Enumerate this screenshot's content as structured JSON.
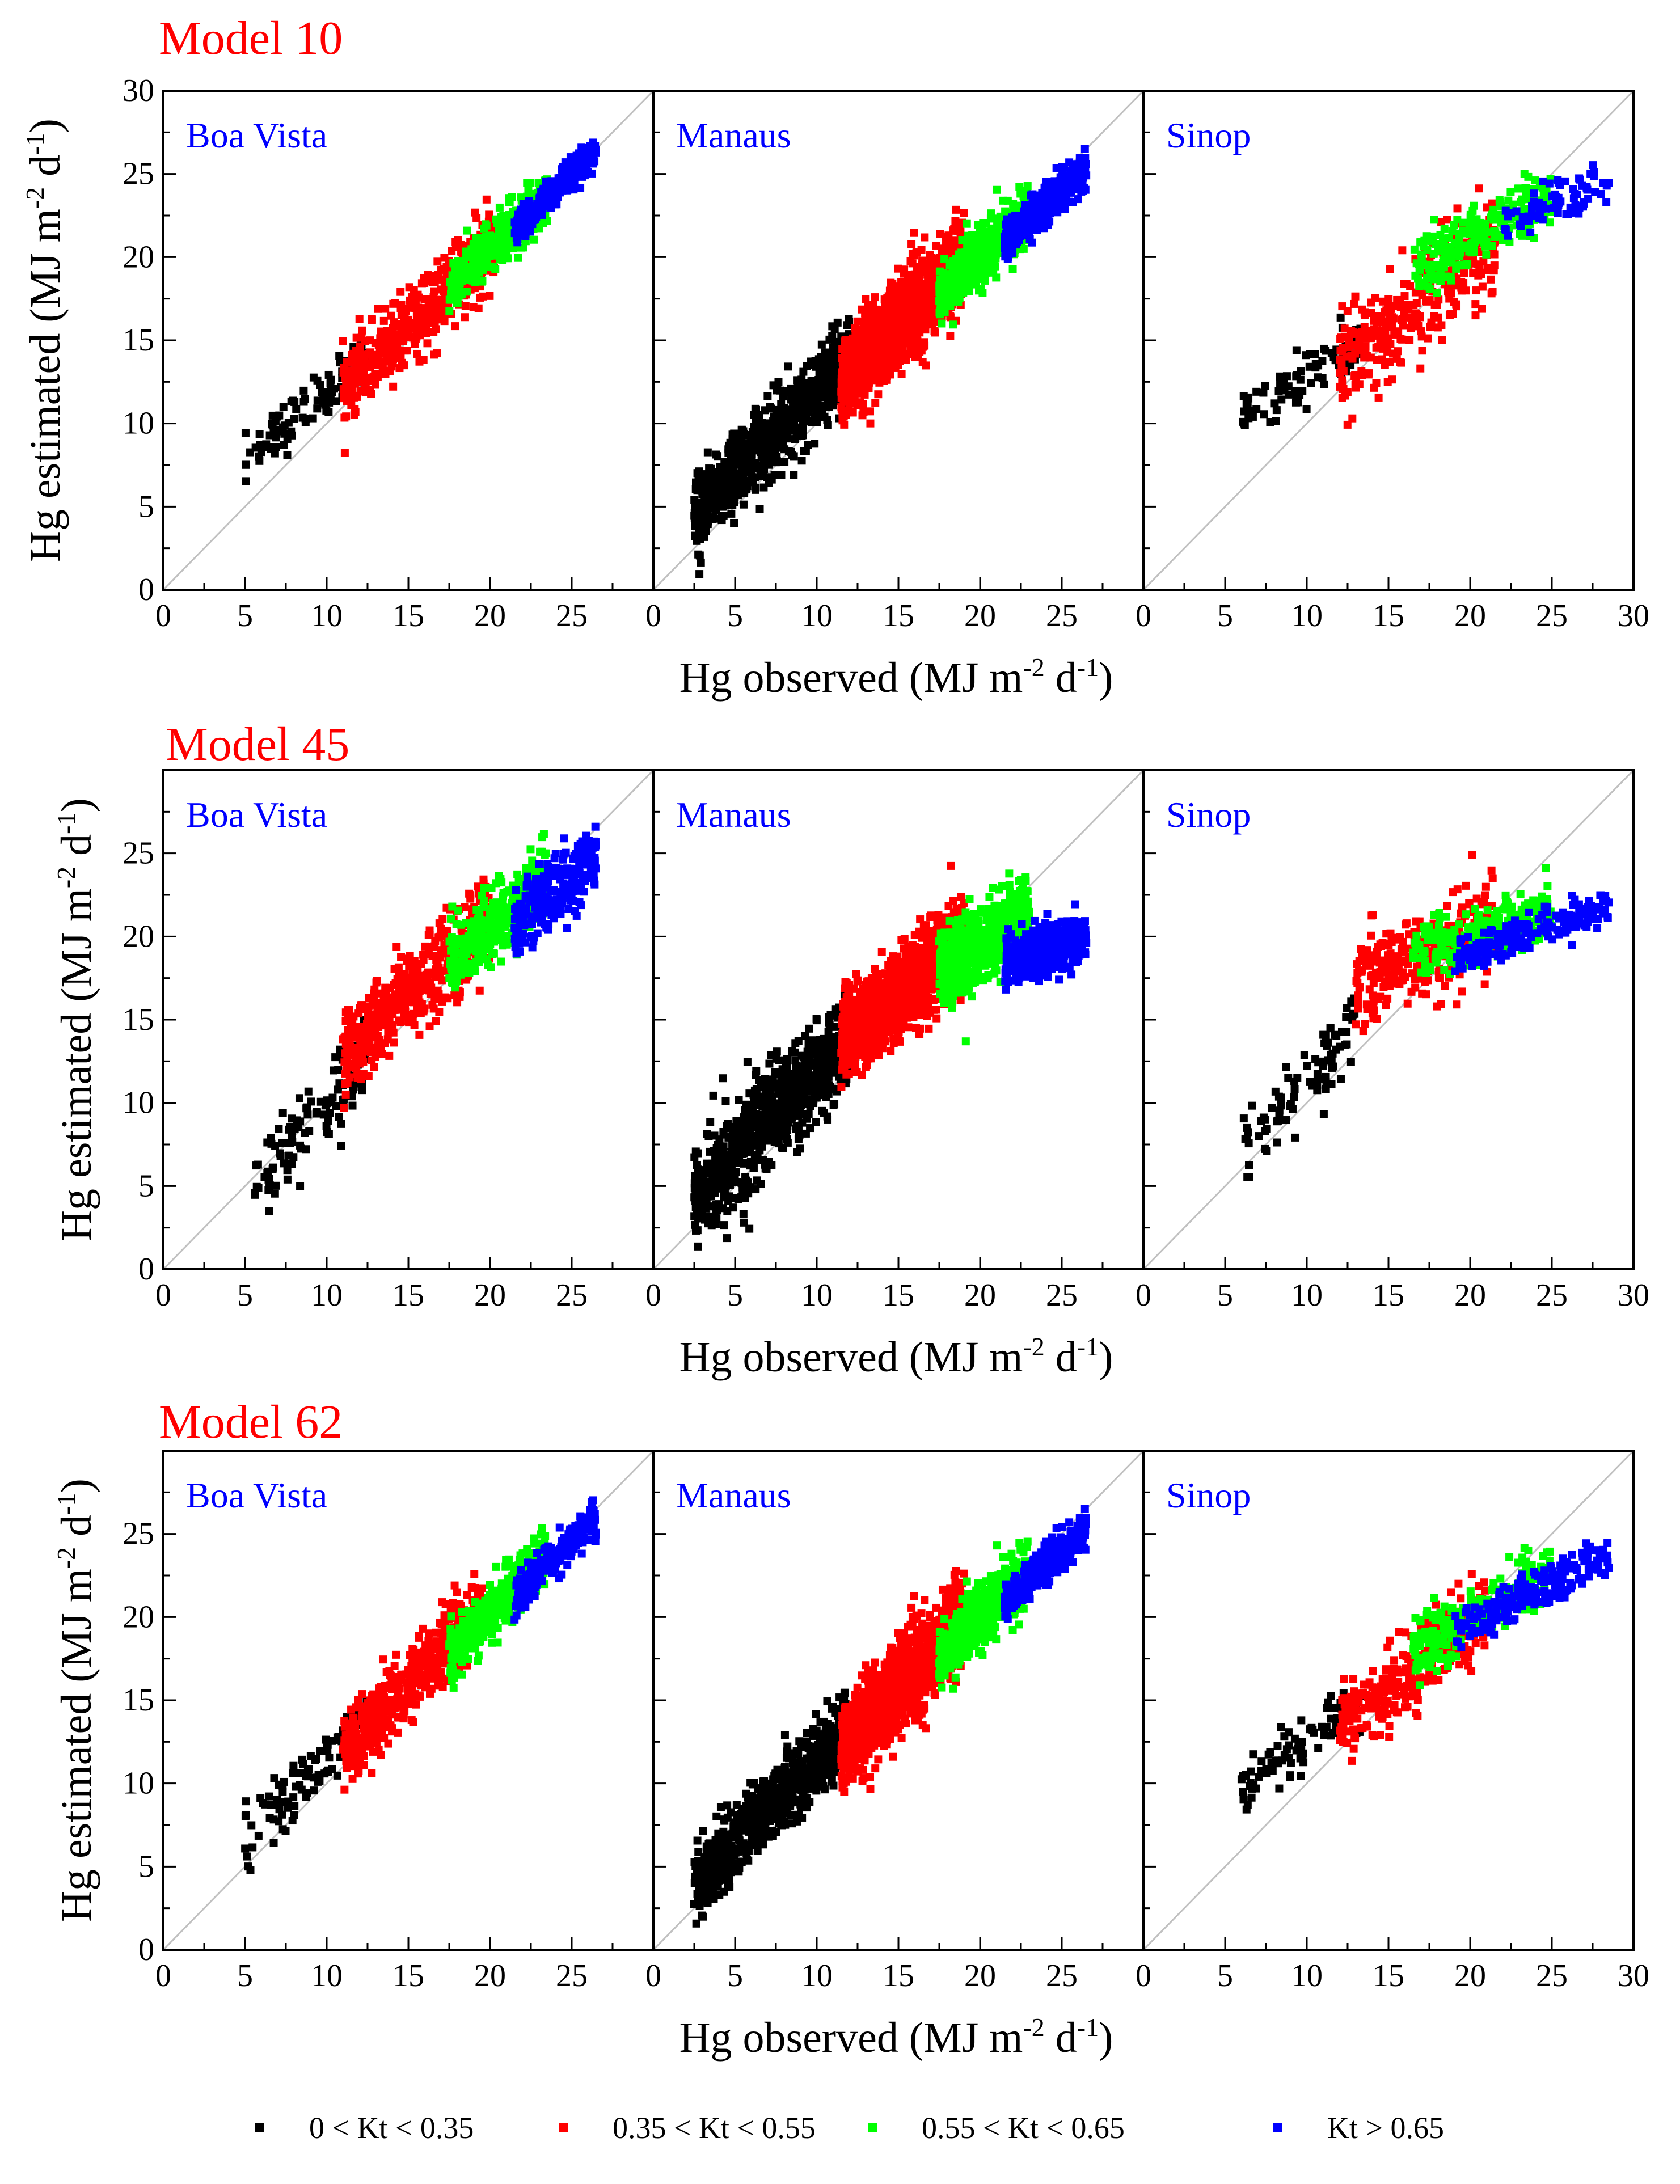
{
  "figure": {
    "x_axis_label": "Hg observed (MJ m",
    "x_axis_sup1": "-2",
    "x_axis_mid": " d",
    "x_axis_sup2": "-1",
    "x_axis_end": ")",
    "y_axis_label": "Hg estimated (MJ m",
    "y_axis_sup1": "-2",
    "y_axis_mid": " d",
    "y_axis_sup2": "-1",
    "y_axis_end": ")",
    "title_color": "#ff0000",
    "station_color": "#0000ff",
    "identity_line_color": "#c0c0c0"
  },
  "legend": [
    {
      "label": "0 < Kt < 0.35",
      "color": "#000000"
    },
    {
      "label": "0.35 < Kt < 0.55",
      "color": "#ff0000"
    },
    {
      "label": "0.55 < Kt < 0.65",
      "color": "#00ff00"
    },
    {
      "label": "Kt > 0.65",
      "color": "#0000ff"
    }
  ],
  "chart_data": [
    {
      "type": "scatter",
      "title": "Model 10",
      "xlabel": "Hg observed (MJ m-2 d-1)",
      "ylabel": "Hg estimated (MJ m-2 d-1)",
      "xlim": [
        0,
        30
      ],
      "ylim": [
        0,
        30
      ],
      "y_ticks": [
        "0",
        "5",
        "10",
        "15",
        "20",
        "25",
        "30"
      ],
      "panels": [
        {
          "station": "Boa Vista",
          "x_ticks": [
            "0",
            "5",
            "10",
            "15",
            "20",
            "25"
          ],
          "clusters": [
            {
              "class": "0 < Kt < 0.35",
              "color": "#000000",
              "x_range": [
                5,
                12.5
              ],
              "slope": 0.85,
              "intercept": 3.5,
              "spread": 1.4,
              "n": 110
            },
            {
              "class": "0.35 < Kt < 0.55",
              "color": "#ff0000",
              "x_range": [
                11,
                20.5
              ],
              "slope": 0.95,
              "intercept": 1.5,
              "spread": 2.0,
              "n": 500
            },
            {
              "class": "0.55 < Kt < 0.65",
              "color": "#00ff00",
              "x_range": [
                17.5,
                23.5
              ],
              "slope": 0.95,
              "intercept": 1.5,
              "spread": 1.4,
              "n": 380
            },
            {
              "class": "Kt > 0.65",
              "color": "#0000ff",
              "x_range": [
                21.5,
                26.5
              ],
              "slope": 0.95,
              "intercept": 1.2,
              "spread": 0.9,
              "n": 260
            }
          ]
        },
        {
          "station": "Manaus",
          "x_ticks": [
            "0",
            "5",
            "10",
            "15",
            "20",
            "25"
          ],
          "clusters": [
            {
              "class": "0 < Kt < 0.35",
              "color": "#000000",
              "x_range": [
                2.5,
                12
              ],
              "slope": 0.95,
              "intercept": 2.3,
              "spread": 2.2,
              "n": 800
            },
            {
              "class": "0.35 < Kt < 0.55",
              "color": "#ff0000",
              "x_range": [
                11.5,
                19
              ],
              "slope": 1.0,
              "intercept": 1.0,
              "spread": 2.3,
              "n": 1300
            },
            {
              "class": "0.55 < Kt < 0.65",
              "color": "#00ff00",
              "x_range": [
                17.5,
                23
              ],
              "slope": 0.9,
              "intercept": 2.0,
              "spread": 1.5,
              "n": 650
            },
            {
              "class": "Kt > 0.65",
              "color": "#0000ff",
              "x_range": [
                21.5,
                26.5
              ],
              "slope": 0.9,
              "intercept": 1.5,
              "spread": 1.0,
              "n": 380
            }
          ]
        },
        {
          "station": "Sinop",
          "x_ticks": [
            "0",
            "5",
            "10",
            "15",
            "20",
            "25",
            "30"
          ],
          "clusters": [
            {
              "class": "0 < Kt < 0.35",
              "color": "#000000",
              "x_range": [
                6,
                13.5
              ],
              "slope": 0.6,
              "intercept": 7.0,
              "spread": 1.4,
              "n": 90
            },
            {
              "class": "0.35 < Kt < 0.55",
              "color": "#ff0000",
              "x_range": [
                12,
                21.5
              ],
              "slope": 0.75,
              "intercept": 4.5,
              "spread": 2.8,
              "n": 320
            },
            {
              "class": "0.55 < Kt < 0.65",
              "color": "#00ff00",
              "x_range": [
                16.5,
                25
              ],
              "slope": 0.55,
              "intercept": 10.0,
              "spread": 1.6,
              "n": 240
            },
            {
              "class": "Kt > 0.65",
              "color": "#0000ff",
              "x_range": [
                22,
                28.5
              ],
              "slope": 0.35,
              "intercept": 14.5,
              "spread": 1.2,
              "n": 80
            }
          ]
        }
      ]
    },
    {
      "type": "scatter",
      "title": "Model 45",
      "xlabel": "Hg observed (MJ m-2 d-1)",
      "ylabel": "Hg estimated (MJ m-2 d-1)",
      "xlim": [
        0,
        30
      ],
      "ylim": [
        0,
        30
      ],
      "y_ticks": [
        "0",
        "5",
        "10",
        "15",
        "20",
        "25"
      ],
      "panels": [
        {
          "station": "Boa Vista",
          "x_ticks": [
            "0",
            "5",
            "10",
            "15",
            "20",
            "25"
          ],
          "clusters": [
            {
              "class": "0 < Kt < 0.35",
              "color": "#000000",
              "x_range": [
                5.5,
                12.5
              ],
              "slope": 1.1,
              "intercept": -1.0,
              "spread": 2.2,
              "n": 110
            },
            {
              "class": "0.35 < Kt < 0.55",
              "color": "#ff0000",
              "x_range": [
                11,
                20
              ],
              "slope": 0.9,
              "intercept": 3.0,
              "spread": 2.3,
              "n": 500
            },
            {
              "class": "0.55 < Kt < 0.65",
              "color": "#00ff00",
              "x_range": [
                17.5,
                23.5
              ],
              "slope": 0.85,
              "intercept": 3.5,
              "spread": 2.0,
              "n": 380
            },
            {
              "class": "Kt > 0.65",
              "color": "#0000ff",
              "x_range": [
                21.5,
                26.5
              ],
              "slope": 0.8,
              "intercept": 3.5,
              "spread": 1.8,
              "n": 260
            }
          ]
        },
        {
          "station": "Manaus",
          "x_ticks": [
            "0",
            "5",
            "10",
            "15",
            "20",
            "25"
          ],
          "clusters": [
            {
              "class": "0 < Kt < 0.35",
              "color": "#000000",
              "x_range": [
                2.5,
                12
              ],
              "slope": 1.05,
              "intercept": 1.5,
              "spread": 2.8,
              "n": 800
            },
            {
              "class": "0.35 < Kt < 0.55",
              "color": "#ff0000",
              "x_range": [
                11.5,
                19
              ],
              "slope": 0.8,
              "intercept": 4.5,
              "spread": 2.2,
              "n": 1300
            },
            {
              "class": "0.55 < Kt < 0.65",
              "color": "#00ff00",
              "x_range": [
                17.5,
                23
              ],
              "slope": 0.6,
              "intercept": 7.5,
              "spread": 2.0,
              "n": 650
            },
            {
              "class": "Kt > 0.65",
              "color": "#0000ff",
              "x_range": [
                21.5,
                26.5
              ],
              "slope": 0.3,
              "intercept": 12.0,
              "spread": 1.4,
              "n": 380
            }
          ]
        },
        {
          "station": "Sinop",
          "x_ticks": [
            "0",
            "5",
            "10",
            "15",
            "20",
            "25",
            "30"
          ],
          "clusters": [
            {
              "class": "0 < Kt < 0.35",
              "color": "#000000",
              "x_range": [
                6,
                13
              ],
              "slope": 1.0,
              "intercept": 1.5,
              "spread": 2.2,
              "n": 90
            },
            {
              "class": "0.35 < Kt < 0.55",
              "color": "#ff0000",
              "x_range": [
                13,
                21.5
              ],
              "slope": 0.4,
              "intercept": 12.0,
              "spread": 2.3,
              "n": 320
            },
            {
              "class": "0.55 < Kt < 0.65",
              "color": "#00ff00",
              "x_range": [
                16.5,
                25
              ],
              "slope": 0.3,
              "intercept": 14.0,
              "spread": 1.5,
              "n": 240
            },
            {
              "class": "Kt > 0.65",
              "color": "#0000ff",
              "x_range": [
                19,
                28.5
              ],
              "slope": 0.35,
              "intercept": 12.0,
              "spread": 1.0,
              "n": 200
            }
          ]
        }
      ]
    },
    {
      "type": "scatter",
      "title": "Model 62",
      "xlabel": "Hg observed (MJ m-2 d-1)",
      "ylabel": "Hg estimated (MJ m-2 d-1)",
      "xlim": [
        0,
        30
      ],
      "ylim": [
        0,
        30
      ],
      "y_ticks": [
        "0",
        "5",
        "10",
        "15",
        "20",
        "25"
      ],
      "panels": [
        {
          "station": "Boa Vista",
          "x_ticks": [
            "0",
            "5",
            "10",
            "15",
            "20",
            "25"
          ],
          "clusters": [
            {
              "class": "0 < Kt < 0.35",
              "color": "#000000",
              "x_range": [
                5,
                12.5
              ],
              "slope": 0.95,
              "intercept": 2.0,
              "spread": 1.6,
              "n": 110
            },
            {
              "class": "0.35 < Kt < 0.55",
              "color": "#ff0000",
              "x_range": [
                11,
                19.5
              ],
              "slope": 1.0,
              "intercept": 1.0,
              "spread": 2.0,
              "n": 500
            },
            {
              "class": "0.55 < Kt < 0.65",
              "color": "#00ff00",
              "x_range": [
                17.5,
                23.5
              ],
              "slope": 0.95,
              "intercept": 1.2,
              "spread": 1.4,
              "n": 380
            },
            {
              "class": "Kt > 0.65",
              "color": "#0000ff",
              "x_range": [
                21.5,
                26.5
              ],
              "slope": 0.95,
              "intercept": 0.8,
              "spread": 1.0,
              "n": 260
            }
          ]
        },
        {
          "station": "Manaus",
          "x_ticks": [
            "0",
            "5",
            "10",
            "15",
            "20",
            "25"
          ],
          "clusters": [
            {
              "class": "0 < Kt < 0.35",
              "color": "#000000",
              "x_range": [
                2.5,
                12
              ],
              "slope": 1.0,
              "intercept": 1.5,
              "spread": 2.0,
              "n": 800
            },
            {
              "class": "0.35 < Kt < 0.55",
              "color": "#ff0000",
              "x_range": [
                11.5,
                19
              ],
              "slope": 1.05,
              "intercept": 0.0,
              "spread": 2.3,
              "n": 1300
            },
            {
              "class": "0.55 < Kt < 0.65",
              "color": "#00ff00",
              "x_range": [
                17.5,
                23
              ],
              "slope": 0.95,
              "intercept": 1.0,
              "spread": 1.6,
              "n": 650
            },
            {
              "class": "Kt > 0.65",
              "color": "#0000ff",
              "x_range": [
                21.5,
                26.5
              ],
              "slope": 0.9,
              "intercept": 1.5,
              "spread": 1.0,
              "n": 380
            }
          ]
        },
        {
          "station": "Sinop",
          "x_ticks": [
            "0",
            "5",
            "10",
            "15",
            "20",
            "25",
            "30"
          ],
          "clusters": [
            {
              "class": "0 < Kt < 0.35",
              "color": "#000000",
              "x_range": [
                6,
                13.5
              ],
              "slope": 0.7,
              "intercept": 5.5,
              "spread": 1.4,
              "n": 90
            },
            {
              "class": "0.35 < Kt < 0.55",
              "color": "#ff0000",
              "x_range": [
                12,
                21
              ],
              "slope": 0.75,
              "intercept": 4.5,
              "spread": 2.0,
              "n": 320
            },
            {
              "class": "0.55 < Kt < 0.65",
              "color": "#00ff00",
              "x_range": [
                16.5,
                25
              ],
              "slope": 0.6,
              "intercept": 8.0,
              "spread": 1.6,
              "n": 240
            },
            {
              "class": "Kt > 0.65",
              "color": "#0000ff",
              "x_range": [
                19,
                28.5
              ],
              "slope": 0.5,
              "intercept": 9.5,
              "spread": 1.2,
              "n": 200
            }
          ]
        }
      ]
    }
  ]
}
